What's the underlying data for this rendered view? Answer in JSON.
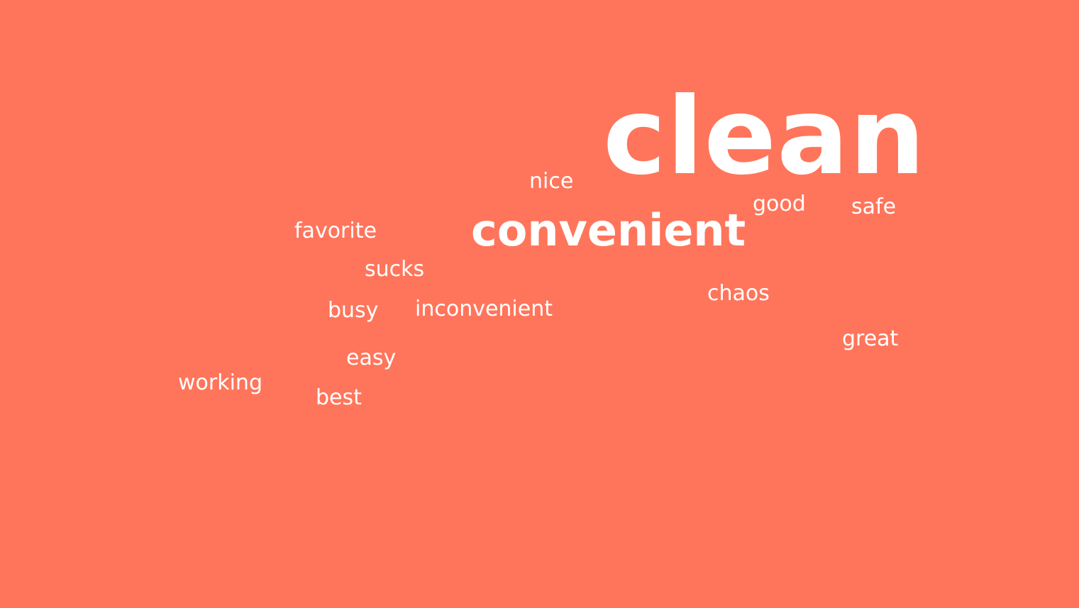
{
  "background_color": "#ff755b",
  "text_color": "#ffffff",
  "words": {
    "clean": "clean",
    "convenient": "convenient",
    "nice": "nice",
    "good": "good",
    "safe": "safe",
    "favorite": "favorite",
    "sucks": "sucks",
    "chaos": "chaos",
    "busy": "busy",
    "inconvenient": "inconvenient",
    "great": "great",
    "easy": "easy",
    "working": "working",
    "best": "best"
  }
}
